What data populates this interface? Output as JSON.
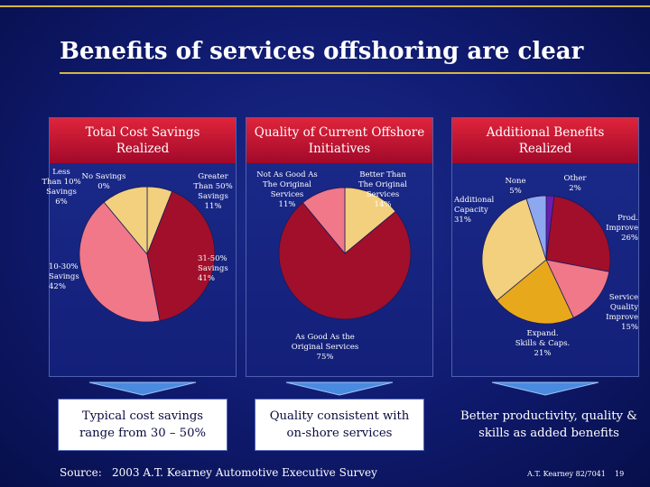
{
  "slide": {
    "title": "Benefits of services offshoring are clear",
    "source_label": "Source:",
    "source_text": "2003 A.T. Kearney Automotive Executive Survey",
    "footer_company": "A.T. Kearney",
    "footer_code": "82/7041",
    "page_number": "19"
  },
  "colors": {
    "accent_line": "#d8b640",
    "header_red": "#c8102e",
    "arrow": "#4a8be0"
  },
  "panels": [
    {
      "header_line1": "Total Cost Savings",
      "header_line2": "Realized",
      "takeaway": "Typical cost savings range from 30 – 50%"
    },
    {
      "header_line1": "Quality of Current Offshore",
      "header_line2": "Initiatives",
      "takeaway": "Quality consistent with on-shore services"
    },
    {
      "header_line1": "Additional Benefits",
      "header_line2": "Realized",
      "takeaway": "Better productivity, quality & skills as added benefits"
    }
  ],
  "chart_data": [
    {
      "type": "pie",
      "title": "Total Cost Savings Realized",
      "slices": [
        {
          "label_lines": [
            "No Savings",
            "0%"
          ],
          "value": 0,
          "color": "#f2d58a"
        },
        {
          "label_lines": [
            "Less",
            "Than 10%",
            "Savings",
            "6%"
          ],
          "value": 6,
          "color": "#f2d07e"
        },
        {
          "label_lines": [
            "31-50%",
            "Savings",
            "41%"
          ],
          "value": 41,
          "color": "#a10f2b"
        },
        {
          "label_lines": [
            "10-30%",
            "Savings",
            "42%"
          ],
          "value": 42,
          "color": "#f07888"
        },
        {
          "label_lines": [
            "Greater",
            "Than 50%",
            "Savings",
            "11%"
          ],
          "value": 11,
          "color": "#f2d07e"
        }
      ]
    },
    {
      "type": "pie",
      "title": "Quality of Current Offshore Initiatives",
      "slices": [
        {
          "label_lines": [
            "Better Than",
            "The Original",
            "Services",
            "14%"
          ],
          "value": 14,
          "color": "#f2d07e"
        },
        {
          "label_lines": [
            "As Good As the",
            "Original Services",
            "75%"
          ],
          "value": 75,
          "color": "#a10f2b"
        },
        {
          "label_lines": [
            "Not As Good As",
            "The Original",
            "Services",
            "11%"
          ],
          "value": 11,
          "color": "#f07888"
        }
      ]
    },
    {
      "type": "pie",
      "title": "Additional Benefits Realized",
      "slices": [
        {
          "label_lines": [
            "Other",
            "2%"
          ],
          "value": 2,
          "color": "#6a1fb0"
        },
        {
          "label_lines": [
            "Prod.",
            "Improve",
            "26%"
          ],
          "value": 26,
          "color": "#a10f2b"
        },
        {
          "label_lines": [
            "Service",
            "Quality",
            "Improve",
            "15%"
          ],
          "value": 15,
          "color": "#f07888"
        },
        {
          "label_lines": [
            "Expand.",
            "Skills & Caps.",
            "21%"
          ],
          "value": 21,
          "color": "#e8a81c"
        },
        {
          "label_lines": [
            "Additional",
            "Capacity",
            "31%"
          ],
          "value": 31,
          "color": "#f2d07e"
        },
        {
          "label_lines": [
            "None",
            "5%"
          ],
          "value": 5,
          "color": "#8ea8f0"
        }
      ]
    }
  ]
}
